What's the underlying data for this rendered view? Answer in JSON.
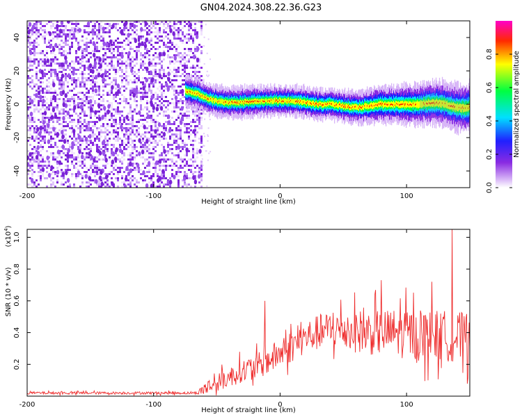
{
  "title": "GN04.2024.308.22.36.G23",
  "colors": {
    "snr_line": "#ee2b2b",
    "noise_purple": "#8a2be2",
    "background": "#ffffff",
    "frame": "#000000"
  },
  "chart_data": [
    {
      "type": "heatmap",
      "xlabel": "Height of straight line (km)",
      "ylabel": "Frequency (Hz)",
      "xlim": [
        -200,
        150
      ],
      "ylim": [
        -50,
        50
      ],
      "x_ticks": [
        -200,
        -100,
        0,
        100
      ],
      "x_tick_labels": [
        "-200",
        "-100",
        "0",
        "100"
      ],
      "y_ticks": [
        -40,
        -20,
        0,
        20,
        40
      ],
      "y_tick_labels": [
        "-40",
        "-20",
        "0",
        "20",
        "40"
      ],
      "colorbar": {
        "label": "Normalized spectral amplitude",
        "range": [
          0,
          1
        ],
        "ticks": [
          0.0,
          0.2,
          0.4,
          0.6,
          0.8
        ],
        "tick_labels": [
          "0.0",
          "0.2",
          "0.4",
          "0.6",
          "0.8"
        ],
        "colormap": "rainbow (white-purple-blue-cyan-green-yellow-red-magenta)"
      },
      "noise_region_x_range": [
        -200,
        -62
      ],
      "trace": {
        "x": [
          -75,
          -65,
          -60,
          -50,
          -40,
          -30,
          -20,
          -10,
          0,
          10,
          20,
          30,
          40,
          50,
          60,
          70,
          80,
          90,
          100,
          110,
          120,
          130,
          140,
          150
        ],
        "y": [
          8,
          6,
          4,
          2,
          1,
          1,
          2,
          2,
          2,
          2,
          1,
          0,
          0,
          -1,
          -2,
          -1,
          0,
          0,
          0,
          0,
          1,
          0,
          -2,
          -2
        ]
      }
    },
    {
      "type": "line",
      "xlabel": "Height of straight line (km)",
      "ylabel": "SNR (10 * v/v)",
      "y_multiplier_label": "(x10",
      "y_multiplier_exp": "4",
      "y_multiplier_close": ")",
      "xlim": [
        -200,
        150
      ],
      "ylim": [
        0,
        1.05
      ],
      "x_ticks": [
        -200,
        -100,
        0,
        100
      ],
      "x_tick_labels": [
        "-200",
        "-100",
        "0",
        "100"
      ],
      "y_ticks": [
        0.2,
        0.4,
        0.6,
        0.8,
        1.0
      ],
      "y_tick_labels": [
        "0.2",
        "0.4",
        "0.6",
        "0.8",
        "1.0"
      ],
      "series": [
        {
          "color": "#ee2b2b",
          "x": [
            -200,
            -150,
            -100,
            -65,
            -60,
            -50,
            -40,
            -30,
            -20,
            -10,
            0,
            10,
            20,
            30,
            40,
            50,
            60,
            70,
            80,
            90,
            100,
            110,
            120,
            130,
            140,
            150
          ],
          "y": [
            0.02,
            0.02,
            0.02,
            0.02,
            0.05,
            0.08,
            0.12,
            0.16,
            0.18,
            0.22,
            0.27,
            0.32,
            0.37,
            0.4,
            0.42,
            0.42,
            0.41,
            0.4,
            0.4,
            0.4,
            0.39,
            0.39,
            0.38,
            0.38,
            0.37,
            0.37
          ],
          "noise_amplitude": [
            0.01,
            0.01,
            0.01,
            0.01,
            0.06,
            0.07,
            0.08,
            0.09,
            0.1,
            0.11,
            0.12,
            0.13,
            0.13,
            0.14,
            0.15,
            0.16,
            0.17,
            0.18,
            0.18,
            0.19,
            0.2,
            0.2,
            0.2,
            0.2,
            0.2,
            0.2
          ]
        }
      ],
      "peaks": [
        {
          "x": -12,
          "y": 0.6
        },
        {
          "x": 80,
          "y": 0.73
        },
        {
          "x": 120,
          "y": 0.72
        },
        {
          "x": 136,
          "y": 1.05
        }
      ]
    }
  ]
}
